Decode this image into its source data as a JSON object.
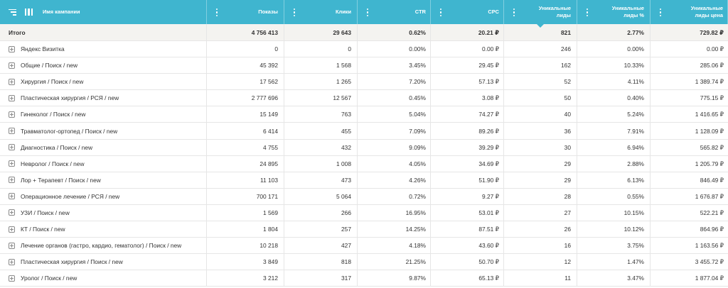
{
  "header": {
    "campaign_name": "Имя кампании",
    "shows": "Показы",
    "clicks": "Клики",
    "ctr": "CTR",
    "cpc": "CPC",
    "unique_leads_1": "Уникальные",
    "unique_leads_2": "лиды",
    "unique_leads_pct_1": "Уникальные",
    "unique_leads_pct_2": "лиды %",
    "unique_leads_price_1": "Уникальные",
    "unique_leads_price_2": "лиды цена"
  },
  "total": {
    "name": "Итого",
    "shows": "4 756 413",
    "clicks": "29 643",
    "ctr": "0.62%",
    "cpc": "20.21 ₽",
    "leads": "821",
    "leads_pct": "2.77%",
    "lead_price": "729.82 ₽"
  },
  "rows": [
    {
      "name": "Яндекс Визитка",
      "shows": "0",
      "clicks": "0",
      "ctr": "0.00%",
      "cpc": "0.00 ₽",
      "leads": "246",
      "leads_pct": "0.00%",
      "lead_price": "0.00 ₽"
    },
    {
      "name": "Общие / Поиск / new",
      "shows": "45 392",
      "clicks": "1 568",
      "ctr": "3.45%",
      "cpc": "29.45 ₽",
      "leads": "162",
      "leads_pct": "10.33%",
      "lead_price": "285.06 ₽"
    },
    {
      "name": "Хирургия / Поиск / new",
      "shows": "17 562",
      "clicks": "1 265",
      "ctr": "7.20%",
      "cpc": "57.13 ₽",
      "leads": "52",
      "leads_pct": "4.11%",
      "lead_price": "1 389.74 ₽"
    },
    {
      "name": "Пластическая хирургия / РСЯ / new",
      "shows": "2 777 696",
      "clicks": "12 567",
      "ctr": "0.45%",
      "cpc": "3.08 ₽",
      "leads": "50",
      "leads_pct": "0.40%",
      "lead_price": "775.15 ₽"
    },
    {
      "name": "Гинеколог / Поиск / new",
      "shows": "15 149",
      "clicks": "763",
      "ctr": "5.04%",
      "cpc": "74.27 ₽",
      "leads": "40",
      "leads_pct": "5.24%",
      "lead_price": "1 416.65 ₽"
    },
    {
      "name": "Травматолог-ортопед / Поиск / new",
      "shows": "6 414",
      "clicks": "455",
      "ctr": "7.09%",
      "cpc": "89.26 ₽",
      "leads": "36",
      "leads_pct": "7.91%",
      "lead_price": "1 128.09 ₽"
    },
    {
      "name": "Диагностика / Поиск / new",
      "shows": "4 755",
      "clicks": "432",
      "ctr": "9.09%",
      "cpc": "39.29 ₽",
      "leads": "30",
      "leads_pct": "6.94%",
      "lead_price": "565.82 ₽"
    },
    {
      "name": "Невролог / Поиск / new",
      "shows": "24 895",
      "clicks": "1 008",
      "ctr": "4.05%",
      "cpc": "34.69 ₽",
      "leads": "29",
      "leads_pct": "2.88%",
      "lead_price": "1 205.79 ₽"
    },
    {
      "name": "Лор + Терапевт / Поиск / new",
      "shows": "11 103",
      "clicks": "473",
      "ctr": "4.26%",
      "cpc": "51.90 ₽",
      "leads": "29",
      "leads_pct": "6.13%",
      "lead_price": "846.49 ₽"
    },
    {
      "name": "Операционное лечение / РСЯ / new",
      "shows": "700 171",
      "clicks": "5 064",
      "ctr": "0.72%",
      "cpc": "9.27 ₽",
      "leads": "28",
      "leads_pct": "0.55%",
      "lead_price": "1 676.87 ₽"
    },
    {
      "name": "УЗИ / Поиск / new",
      "shows": "1 569",
      "clicks": "266",
      "ctr": "16.95%",
      "cpc": "53.01 ₽",
      "leads": "27",
      "leads_pct": "10.15%",
      "lead_price": "522.21 ₽"
    },
    {
      "name": "КТ / Поиск / new",
      "shows": "1 804",
      "clicks": "257",
      "ctr": "14.25%",
      "cpc": "87.51 ₽",
      "leads": "26",
      "leads_pct": "10.12%",
      "lead_price": "864.96 ₽"
    },
    {
      "name": "Лечение органов (гастро, кардио, гематолог) / Поиск / new",
      "shows": "10 218",
      "clicks": "427",
      "ctr": "4.18%",
      "cpc": "43.60 ₽",
      "leads": "16",
      "leads_pct": "3.75%",
      "lead_price": "1 163.56 ₽"
    },
    {
      "name": "Пластическая хирургия / Поиск / new",
      "shows": "3 849",
      "clicks": "818",
      "ctr": "21.25%",
      "cpc": "50.70 ₽",
      "leads": "12",
      "leads_pct": "1.47%",
      "lead_price": "3 455.72 ₽"
    },
    {
      "name": "Уролог / Поиск / new",
      "shows": "3 212",
      "clicks": "317",
      "ctr": "9.87%",
      "cpc": "65.13 ₽",
      "leads": "11",
      "leads_pct": "3.47%",
      "lead_price": "1 877.04 ₽"
    }
  ],
  "icons": {
    "menu": "menu-lines-icon",
    "columns": "columns-icon",
    "kebab": "kebab-menu-icon",
    "expand": "plus-square-icon",
    "sort": "sort-down-arrow-icon"
  },
  "colors": {
    "header_bg": "#3fb5cf",
    "total_bg": "#f4f3f0"
  }
}
